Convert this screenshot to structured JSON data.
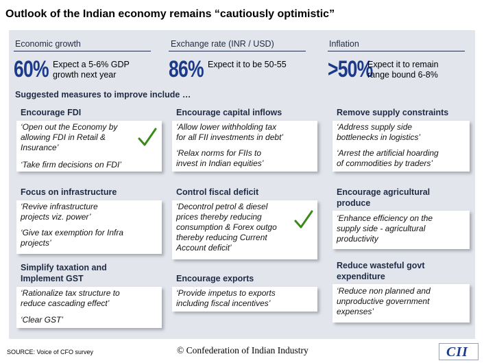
{
  "title": "Outlook of the Indian economy remains “cautiously optimistic”",
  "stats": [
    {
      "heading": "Economic growth",
      "big": "60%",
      "text_lines": [
        "Expect a 5-6% GDP",
        "growth next year"
      ]
    },
    {
      "heading": "Exchange rate (INR / USD)",
      "big": "86%",
      "text_lines": [
        "Expect it to be 50-55"
      ]
    },
    {
      "heading": "Inflation",
      "big": ">50%",
      "text_lines": [
        "Expect it to remain",
        "range bound 6-8%"
      ]
    }
  ],
  "suggested_heading": "Suggested measures to improve include …",
  "measures": [
    {
      "heading": [
        "Encourage FDI"
      ],
      "quotes": [
        [
          "‘Open out the Economy by",
          "allowing FDI in Retail &",
          "Insurance’"
        ],
        [
          "‘Take firm decisions on FDI’"
        ]
      ]
    },
    {
      "heading": [
        "Encourage capital inflows"
      ],
      "quotes": [
        [
          "‘Allow lower withholding tax",
          "for all FII investments in debt’"
        ],
        [
          "‘Relax norms for FIIs to",
          "invest in Indian equities’"
        ]
      ]
    },
    {
      "heading": [
        "Remove supply constraints"
      ],
      "quotes": [
        [
          "‘Address supply side",
          "bottlenecks in logistics’"
        ],
        [
          "‘Arrest the artificial hoarding",
          "of commodities by traders’"
        ]
      ]
    },
    {
      "heading": [
        "Focus on infrastructure"
      ],
      "quotes": [
        [
          "‘Revive infrastructure",
          "projects viz. power’"
        ],
        [
          "‘Give tax exemption for Infra",
          "projects’"
        ]
      ]
    },
    {
      "heading": [
        "Control fiscal deficit"
      ],
      "quotes": [
        [
          "‘Decontrol petrol & diesel",
          "prices thereby reducing",
          "consumption & Forex outgo",
          "thereby reducing Current",
          "Account deficit’"
        ]
      ]
    },
    {
      "heading": [
        "Encourage agricultural",
        "produce"
      ],
      "quotes": [
        [
          "‘Enhance efficiency on the",
          "supply side - agricultural",
          "productivity"
        ]
      ]
    },
    {
      "heading": [
        "Simplify taxation and",
        "Implement GST"
      ],
      "quotes": [
        [
          "‘Rationalize tax structure to",
          "reduce cascading effect’"
        ],
        [
          "‘Clear GST’"
        ]
      ]
    },
    {
      "heading": [
        "Encourage exports"
      ],
      "quotes": [
        [
          "‘Provide impetus to exports",
          "including fiscal incentives’"
        ]
      ]
    },
    {
      "heading": [
        "Reduce wasteful govt",
        "expenditure"
      ],
      "quotes": [
        [
          "‘Reduce non planned and",
          "unproductive government",
          "expenses’"
        ]
      ]
    }
  ],
  "source": "SOURCE: Voice of CFO survey",
  "footer": "© Confederation of Indian Industry",
  "logo": "CII",
  "icons": {
    "check": "check-icon",
    "check_color": "#3a8a1a"
  },
  "colors": {
    "accent": "#1b3a8a",
    "heading": "#1f2a44",
    "panel": "#e2e6ec"
  }
}
